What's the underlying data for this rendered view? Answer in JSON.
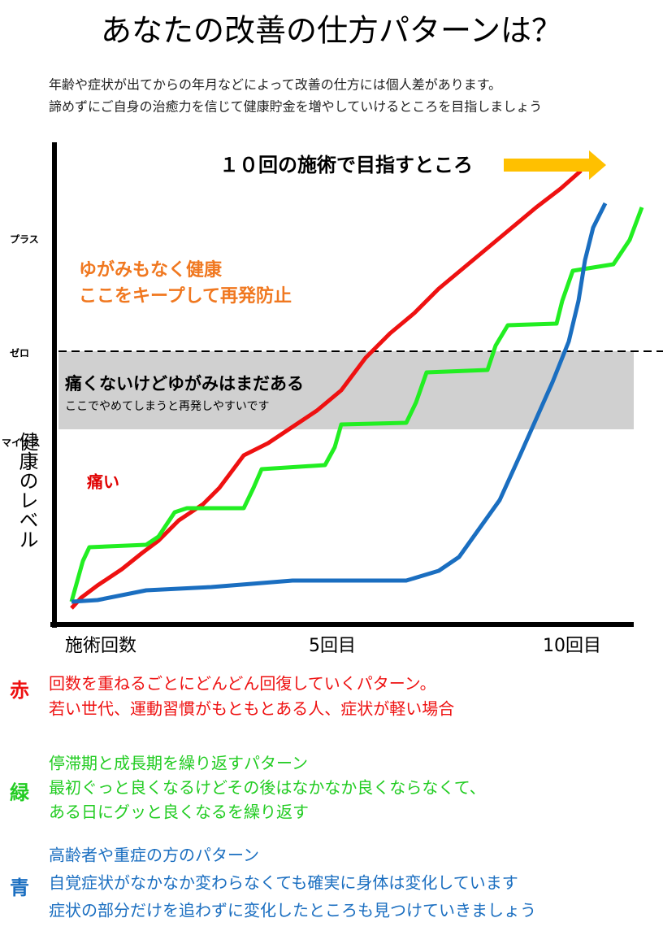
{
  "header": {
    "title": "あなたの改善の仕方パターンは？",
    "intro": [
      "年齢や症状が出てからの年月などによって改善の仕方には個人差があります。",
      "諦めずにご自身の治癒力を信じて健康貯金を増やしていけるところを目指しましょう"
    ]
  },
  "diagram": {
    "goal": "１０回の施術で目指すところ",
    "y_labels": [
      "プラス",
      "ゼロ",
      "マイナス"
    ],
    "y_axis_title": "健康のレベル",
    "x_labels": [
      "施術回数",
      "5回目",
      "10回目"
    ],
    "zones": {
      "healthy": [
        "ゆがみもなく健康",
        "ここをキープして再発防止"
      ],
      "middle": "痛くないけどゆがみはまだある",
      "middle_note": "ここでやめてしまうと再発しやすいです",
      "pain": "痛い"
    }
  },
  "legend": [
    {
      "key": "赤",
      "lines": [
        "回数を重ねるごとにどんどん回復していくパターン。",
        "若い世代、運動習慣がもともとある人、症状が軽い場合"
      ]
    },
    {
      "key": "緑",
      "lines": [
        "停滞期と成長期を繰り返すパターン",
        "最初ぐっと良くなるけどその後はなかなか良くならなくて、",
        "ある日にグッと良くなるを繰り返す"
      ]
    },
    {
      "key": "青",
      "lines": [
        "高齢者や重症の方のパターン",
        "自覚症状がなかなか変わらなくても確実に身体は変化しています",
        "症状の部分だけを追わずに変化したところも見つけていきましょう"
      ]
    }
  ]
}
